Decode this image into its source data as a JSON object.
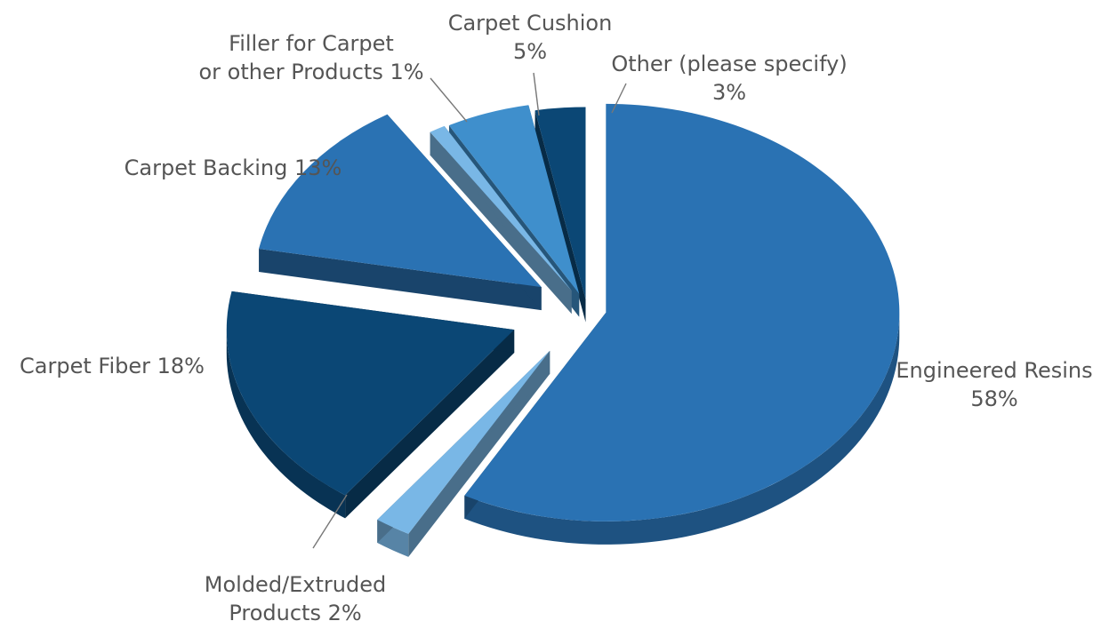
{
  "chart_data": {
    "type": "pie",
    "style": "3d-exploded",
    "title": "",
    "slices": [
      {
        "key": "engineered-resins",
        "name": "Engineered Resins",
        "value": 58,
        "color": "#2a72b3"
      },
      {
        "key": "molded-extruded",
        "name": "Molded/Extruded Products",
        "value": 2,
        "color": "#79b7e6"
      },
      {
        "key": "carpet-fiber",
        "name": "Carpet Fiber",
        "value": 18,
        "color": "#0b4775"
      },
      {
        "key": "carpet-backing",
        "name": "Carpet Backing",
        "value": 13,
        "color": "#2a72b3"
      },
      {
        "key": "filler",
        "name": "Filler for Carpet or other Products",
        "value": 1,
        "color": "#79b7e6"
      },
      {
        "key": "carpet-cushion",
        "name": "Carpet Cushion",
        "value": 5,
        "color": "#3f8fcc"
      },
      {
        "key": "other",
        "name": "Other (please specify)",
        "value": 3,
        "color": "#0b4775"
      }
    ],
    "labels": {
      "engineered-resins": [
        "Engineered Resins",
        "58%"
      ],
      "molded-extruded": [
        "Molded/Extruded",
        "Products 2%"
      ],
      "carpet-fiber": [
        "Carpet Fiber 18%"
      ],
      "carpet-backing": [
        "Carpet Backing 13%"
      ],
      "filler": [
        "Filler for Carpet",
        "or other Products 1%"
      ],
      "carpet-cushion": [
        "Carpet Cushion",
        "5%"
      ],
      "other": [
        "Other (please specify)",
        "3%"
      ]
    }
  }
}
